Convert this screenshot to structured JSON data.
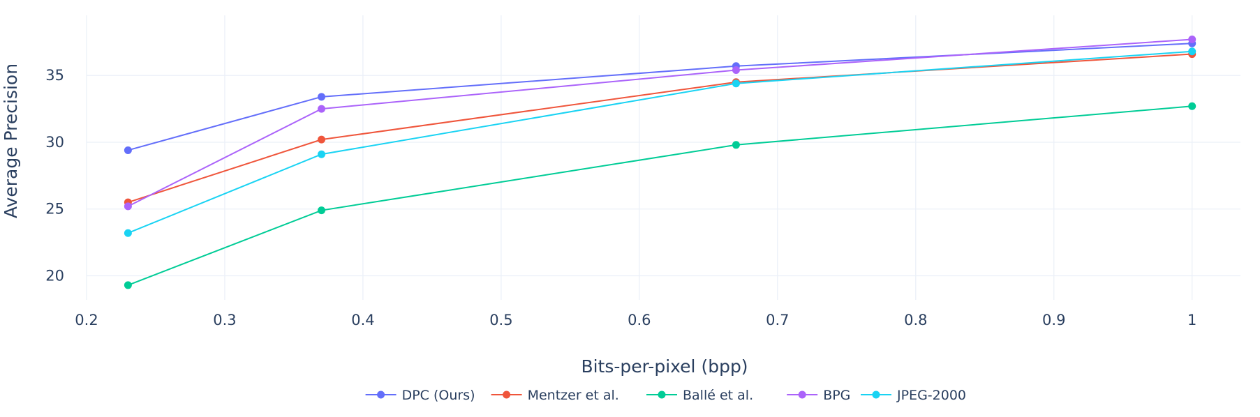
{
  "chart_data": {
    "type": "line",
    "title": "",
    "xlabel": "Bits-per-pixel (bpp)",
    "ylabel": "Average Precision",
    "x": [
      0.23,
      0.37,
      0.67,
      1.0
    ],
    "xlim": [
      0.2,
      1.035
    ],
    "ylim": [
      18.2,
      39.5
    ],
    "xticks": [
      0.2,
      0.3,
      0.4,
      0.5,
      0.6,
      0.7,
      0.8,
      0.9,
      1
    ],
    "xtick_labels": [
      "0.2",
      "0.3",
      "0.4",
      "0.5",
      "0.6",
      "0.7",
      "0.8",
      "0.9",
      "1"
    ],
    "yticks": [
      20,
      25,
      30,
      35
    ],
    "ytick_labels": [
      "20",
      "25",
      "30",
      "35"
    ],
    "grid": true,
    "legend_position": "bottom-center",
    "series": [
      {
        "name": "DPC (Ours)",
        "color": "#636efa",
        "values": [
          29.4,
          33.4,
          35.7,
          37.4
        ]
      },
      {
        "name": "Mentzer et al.",
        "color": "#ef553b",
        "values": [
          25.5,
          30.2,
          34.5,
          36.6
        ]
      },
      {
        "name": "Ballé et al.",
        "color": "#00cc96",
        "values": [
          19.3,
          24.9,
          29.8,
          32.7
        ]
      },
      {
        "name": "BPG",
        "color": "#ab63fa",
        "values": [
          25.2,
          32.5,
          35.4,
          37.7
        ]
      },
      {
        "name": "JPEG-2000",
        "color": "#19d3f3",
        "values": [
          23.2,
          29.1,
          34.4,
          36.8
        ]
      }
    ]
  }
}
